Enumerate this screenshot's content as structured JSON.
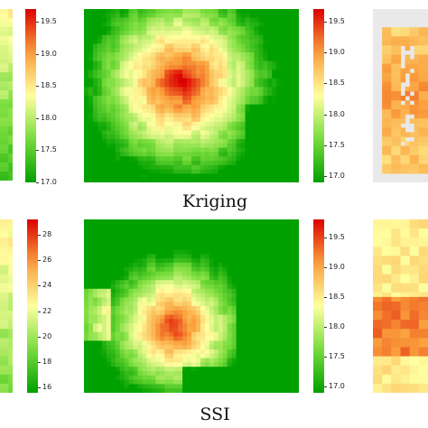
{
  "captions": {
    "middle_top": "Kriging",
    "middle_bottom": "SSI"
  },
  "colorbars": {
    "left_top": {
      "ticks": [
        "19.5",
        "19.0",
        "18.5",
        "18.0",
        "17.5",
        "17.0"
      ],
      "min": 17.0,
      "max": 19.7
    },
    "mid_top": {
      "ticks": [
        "19.5",
        "19.0",
        "18.5",
        "18.0",
        "17.5",
        "17.0"
      ],
      "min": 16.9,
      "max": 19.7
    },
    "left_bottom": {
      "ticks": [
        "28",
        "26",
        "24",
        "22",
        "20",
        "18",
        "16"
      ],
      "min": 15.6,
      "max": 29.2
    },
    "mid_bottom": {
      "ticks": [
        "19.5",
        "19.0",
        "18.5",
        "18.0",
        "17.5",
        "17.0"
      ],
      "min": 16.9,
      "max": 19.8
    }
  },
  "colors": {
    "high": "#e00000",
    "mid": "#ffff99",
    "low": "#00b000"
  },
  "chart_data": [
    {
      "type": "heatmap",
      "panel": "Kriging",
      "colorbar": "mid_top",
      "hotspot_center": [
        0.45,
        0.4
      ],
      "cmap": "RdYlGn_r"
    },
    {
      "type": "heatmap",
      "panel": "SSI",
      "colorbar": "mid_bottom",
      "hotspot_center": [
        0.45,
        0.6
      ],
      "cmap": "RdYlGn_r"
    }
  ]
}
